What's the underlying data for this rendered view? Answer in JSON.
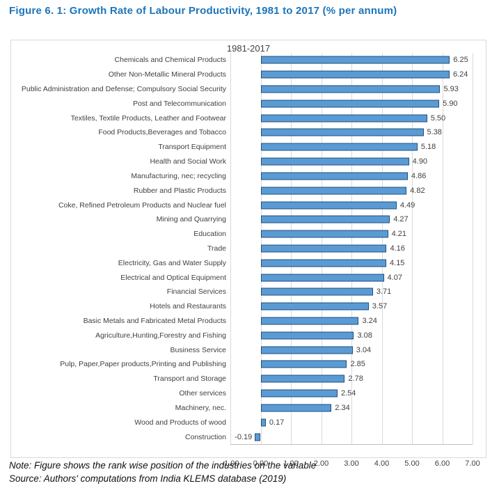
{
  "figure": {
    "title": "Figure 6. 1: Growth Rate of Labour Productivity, 1981 to 2017 (% per annum)"
  },
  "chart_data": {
    "type": "bar",
    "orientation": "horizontal",
    "title": "1981-2017",
    "xlabel": "",
    "ylabel": "",
    "xlim": [
      -1.0,
      7.0
    ],
    "grid": "vertical-only",
    "legend": "none",
    "bar_fill_color": "#5B9BD5",
    "bar_border_color": "#1F4E79",
    "categories": [
      "Chemicals and  Chemical Products",
      "Other Non-Metallic Mineral Products",
      "Public Administration and Defense; Compulsory Social Security",
      "Post and Telecommunication",
      "Textiles, Textile Products, Leather and Footwear",
      "Food Products,Beverages and Tobacco",
      "Transport Equipment",
      "Health and Social Work",
      "Manufacturing, nec; recycling",
      "Rubber and Plastic Products",
      "Coke, Refined Petroleum Products and Nuclear fuel",
      "Mining and Quarrying",
      "Education",
      "Trade",
      "Electricity, Gas and Water Supply",
      "Electrical and Optical Equipment",
      "Financial Services",
      "Hotels and Restaurants",
      "Basic Metals and Fabricated Metal Products",
      "Agriculture,Hunting,Forestry and Fishing",
      "Business Service",
      "Pulp, Paper,Paper products,Printing and Publishing",
      "Transport and Storage",
      "Other services",
      "Machinery, nec.",
      "Wood and Products of wood",
      "Construction"
    ],
    "values": [
      6.25,
      6.24,
      5.93,
      5.9,
      5.5,
      5.38,
      5.18,
      4.9,
      4.86,
      4.82,
      4.49,
      4.27,
      4.21,
      4.16,
      4.15,
      4.07,
      3.71,
      3.57,
      3.24,
      3.08,
      3.04,
      2.85,
      2.78,
      2.54,
      2.34,
      0.17,
      -0.19
    ],
    "x_ticks": [
      "-1.00",
      "0.00",
      "1.00",
      "2.00",
      "3.00",
      "4.00",
      "5.00",
      "6.00",
      "7.00"
    ]
  },
  "footer": {
    "note": "Note: Figure shows the rank wise position of the industries on the variable",
    "source": "Source: Authors' computations from India KLEMS database (2019)"
  },
  "colors": {
    "figure_title": "#1B75BC",
    "axis_text": "#404040",
    "gridline": "#D9D9D9",
    "axis_line": "#BFBFBF"
  }
}
